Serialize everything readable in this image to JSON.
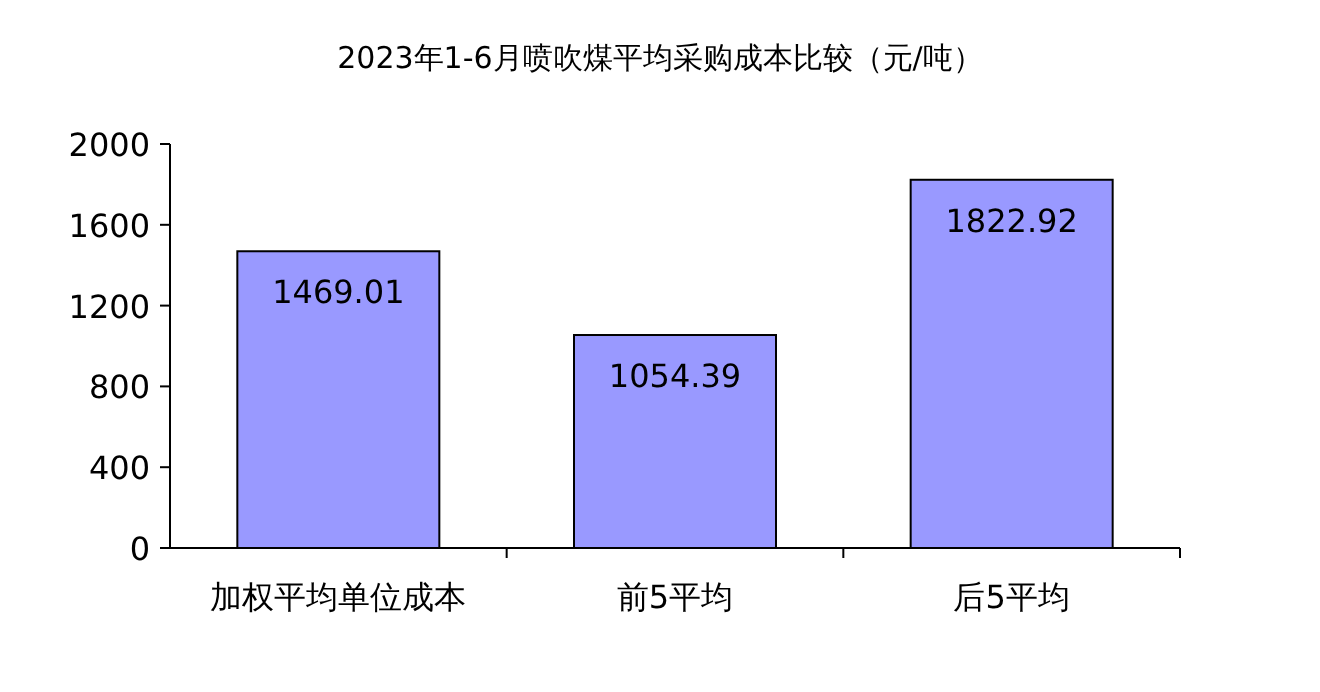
{
  "chart_data": {
    "type": "bar",
    "title": "2023年1-6月喷吹煤平均采购成本比较（元/吨）",
    "categories": [
      "加权平均单位成本",
      "前5平均",
      "后5平均"
    ],
    "values": [
      1469.01,
      1054.39,
      1822.92
    ],
    "color": "#9999ff",
    "ylim": [
      0,
      2000
    ],
    "yticks": [
      0,
      400,
      800,
      1200,
      1600,
      2000
    ],
    "data_labels": true
  }
}
